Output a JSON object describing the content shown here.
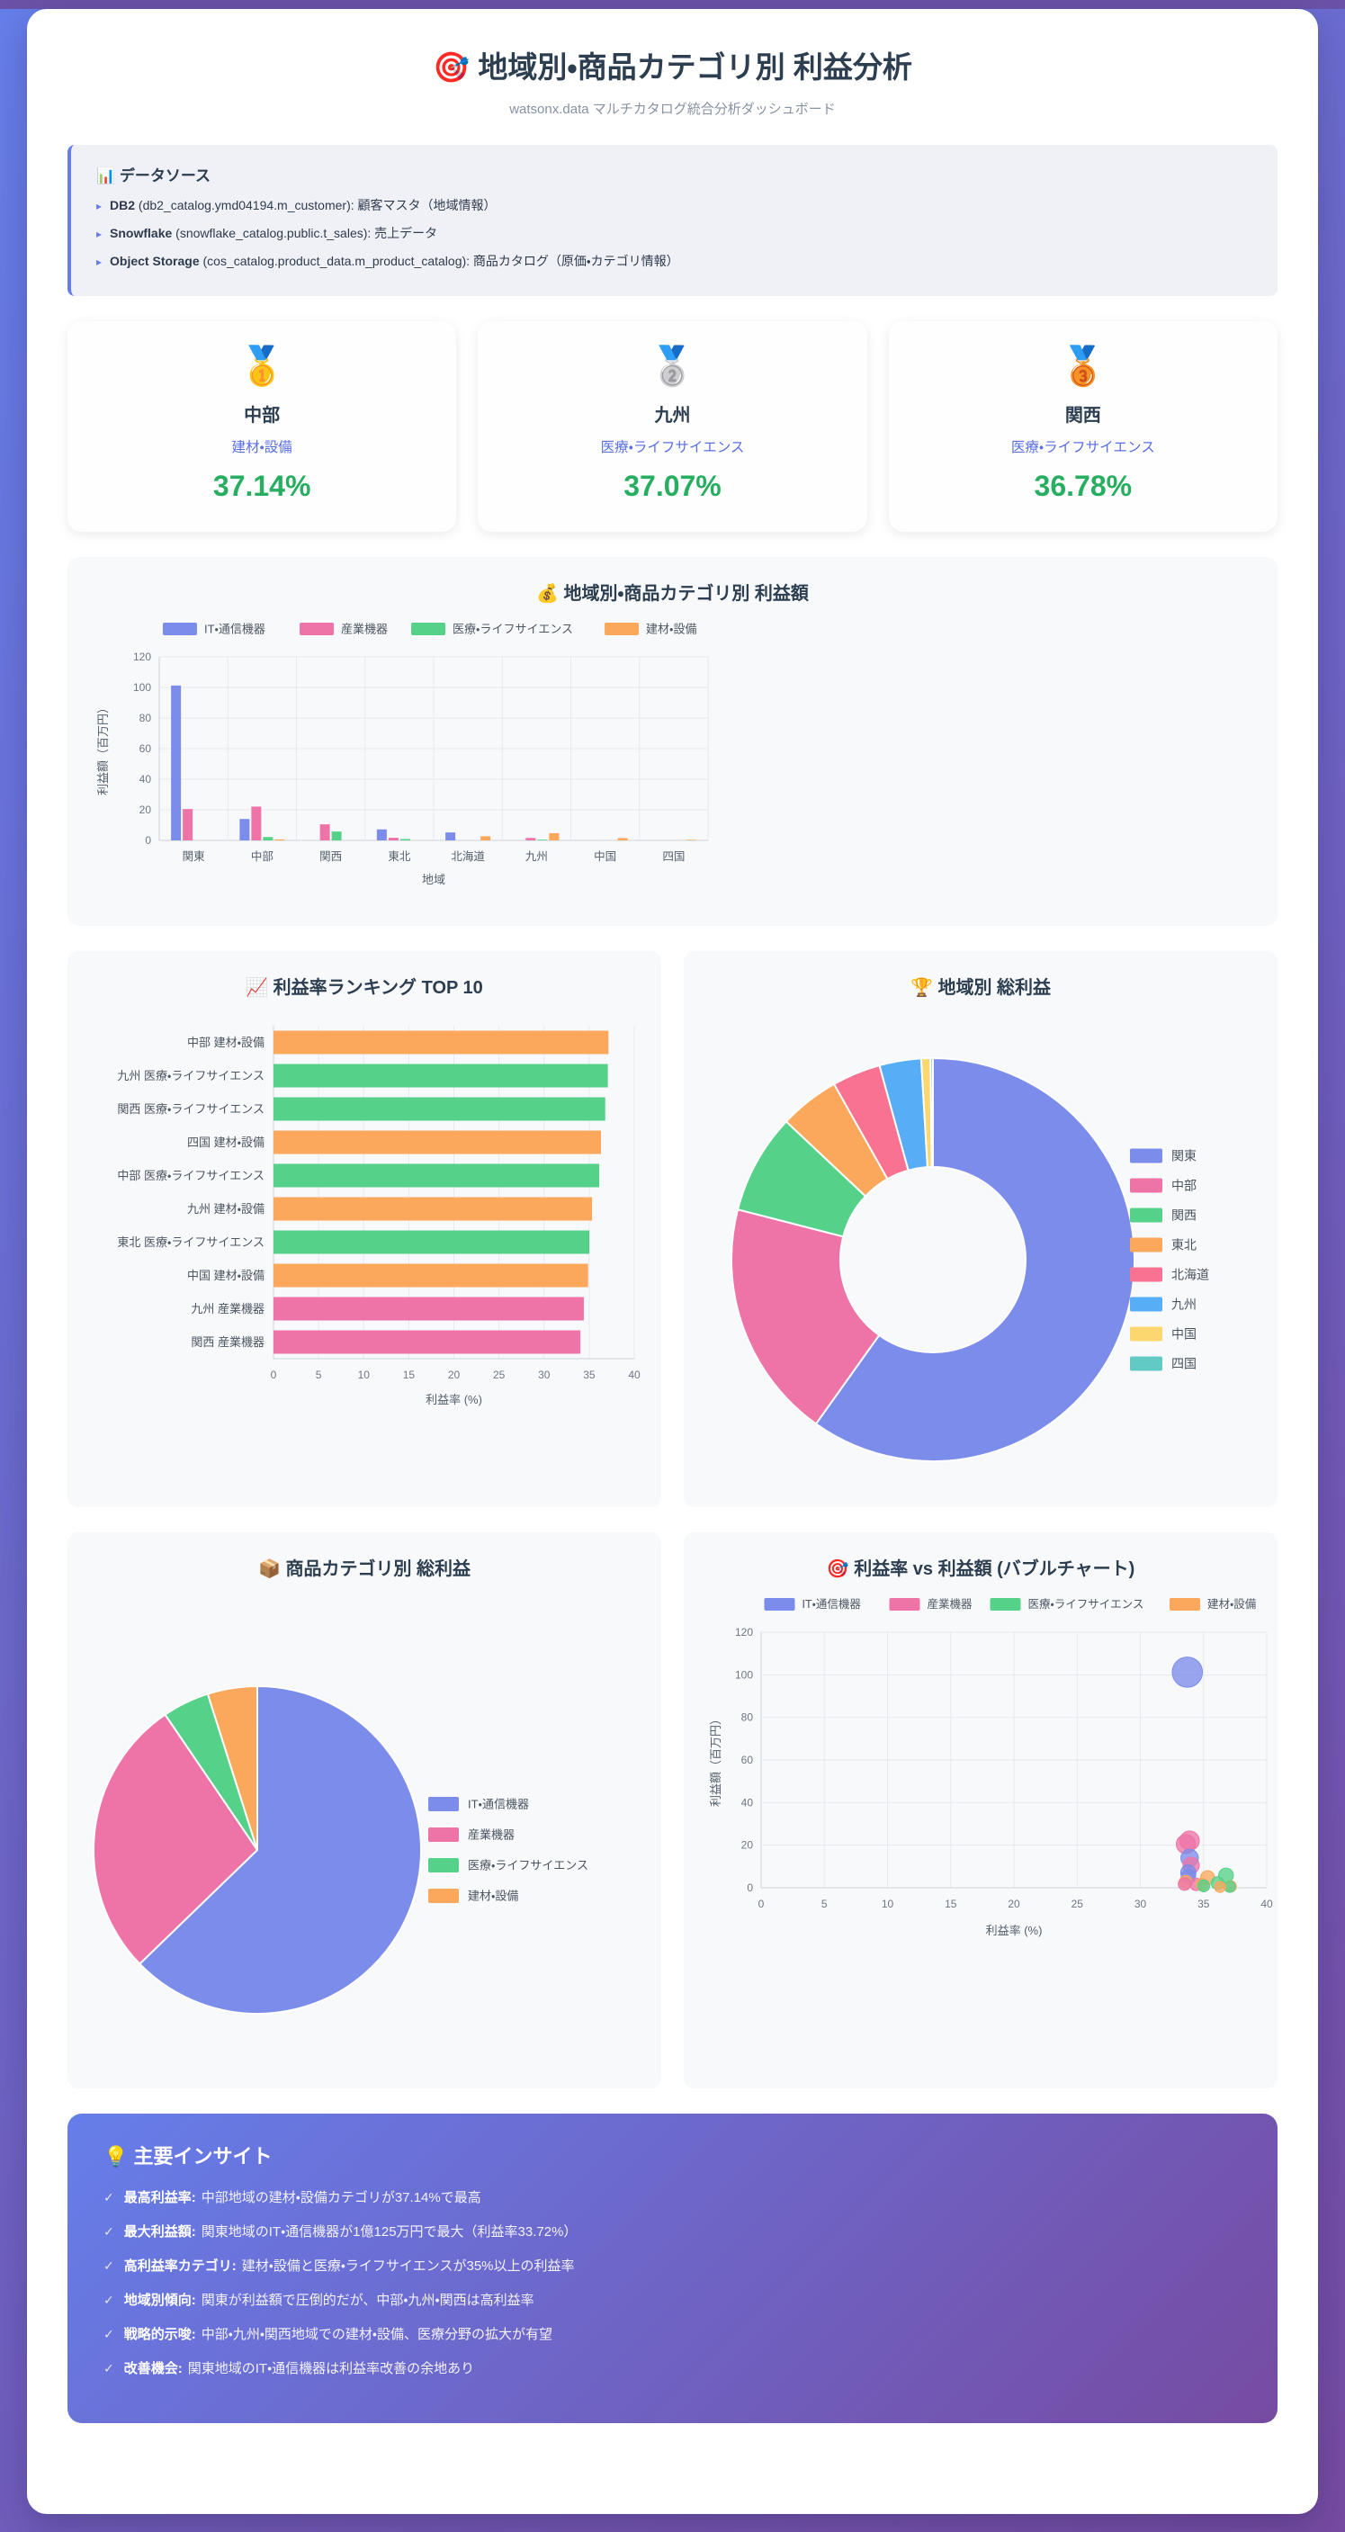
{
  "page": {
    "title": "🎯 地域別・商品カテゴリ別 利益分析",
    "subtitle": "watsonx.data マルチカタログ統合分析ダッシュボード"
  },
  "colors": {
    "accent": "#667eea",
    "gradient_end": "#764ba2",
    "positive_green": "#27ae60",
    "title_dark": "#2c3e50"
  },
  "datasources": {
    "title": "📊 データソース",
    "bullet": "▸",
    "items": [
      {
        "name": "DB2",
        "detail": " (db2_catalog.ymd04194.m_customer): 顧客マスタ（地域情報）"
      },
      {
        "name": "Snowflake",
        "detail": " (snowflake_catalog.public.t_sales): 売上データ"
      },
      {
        "name": "Object Storage",
        "detail": " (cos_catalog.product_data.m_product_catalog): 商品カタログ（原価・カテゴリ情報）"
      }
    ]
  },
  "ranking_cards": [
    {
      "medal": "🥇",
      "region": "中部",
      "category": "建材・設備",
      "rate": "37.14%"
    },
    {
      "medal": "🥈",
      "region": "九州",
      "category": "医療・ライフサイエンス",
      "rate": "37.07%"
    },
    {
      "medal": "🥉",
      "region": "関西",
      "category": "医療・ライフサイエンス",
      "rate": "36.78%"
    }
  ],
  "insights": {
    "title": "💡 主要インサイト",
    "check": "✓",
    "items": [
      {
        "label": "最高利益率:",
        "text": "中部地域の建材・設備カテゴリが37.14%で最高"
      },
      {
        "label": "最大利益額:",
        "text": "関東地域のIT・通信機器が1億125万円で最大（利益率33.72%）"
      },
      {
        "label": "高利益率カテゴリ:",
        "text": "建材・設備と医療・ライフサイエンスが35%以上の利益率"
      },
      {
        "label": "地域別傾向:",
        "text": "関東が利益額で圧倒的だが、中部・九州・関西は高利益率"
      },
      {
        "label": "戦略的示唆:",
        "text": "中部・九州・関西地域での建材・設備、医療分野の拡大が有望"
      },
      {
        "label": "改善機会:",
        "text": "関東地域のIT・通信機器は利益率改善の余地あり"
      }
    ]
  },
  "chart_data": [
    {
      "id": "grouped_bar",
      "type": "bar",
      "title": "💰 地域別・商品カテゴリ別 利益額",
      "categories": [
        "関東",
        "中部",
        "関西",
        "東北",
        "北海道",
        "九州",
        "中国",
        "四国"
      ],
      "series": [
        {
          "name": "IT・通信機器",
          "color": "#7c8ceb",
          "values": [
            101.25,
            14.0,
            0,
            7.2,
            5.2,
            0,
            0,
            0
          ]
        },
        {
          "name": "産業機器",
          "color": "#ee74a8",
          "values": [
            20.5,
            22.1,
            10.5,
            1.7,
            0,
            1.6,
            0,
            0
          ]
        },
        {
          "name": "医療・ライフサイエンス",
          "color": "#55d189",
          "values": [
            0,
            2.2,
            5.8,
            0.9,
            0,
            0.5,
            0,
            0
          ]
        },
        {
          "name": "建材・設備",
          "color": "#fba85c",
          "values": [
            0,
            0.66,
            0,
            0,
            2.7,
            4.7,
            1.5,
            0.4
          ]
        }
      ],
      "xlabel": "地域",
      "ylabel": "利益額（百万円）",
      "ylim": [
        0,
        120
      ],
      "yticks": [
        0,
        20,
        40,
        60,
        80,
        100,
        120
      ],
      "grid": true,
      "legend_position": "top"
    },
    {
      "id": "ranking",
      "type": "bar",
      "orientation": "horizontal",
      "title": "📈 利益率ランキング TOP 10",
      "categories": [
        "中部 建材・設備",
        "九州 医療・ライフサイエンス",
        "関西 医療・ライフサイエンス",
        "四国 建材・設備",
        "中部 医療・ライフサイエンス",
        "九州 建材・設備",
        "東北 医療・ライフサイエンス",
        "中国 建材・設備",
        "九州 産業機器",
        "関西 産業機器"
      ],
      "values": [
        37.14,
        37.07,
        36.78,
        36.31,
        36.12,
        35.32,
        35.02,
        34.88,
        34.41,
        34.02
      ],
      "colors": [
        "#fba85c",
        "#55d189",
        "#55d189",
        "#fba85c",
        "#55d189",
        "#fba85c",
        "#55d189",
        "#fba85c",
        "#ee74a8",
        "#ee74a8"
      ],
      "xlabel": "利益率 (%)",
      "xlim": [
        0,
        40
      ],
      "xticks": [
        0,
        5,
        10,
        15,
        20,
        25,
        30,
        35,
        40
      ],
      "grid": true
    },
    {
      "id": "region_donut",
      "type": "pie",
      "subtype": "donut",
      "title": "🏆 地域別 総利益",
      "labels": [
        "関東",
        "中部",
        "関西",
        "東北",
        "北海道",
        "九州",
        "中国",
        "四国"
      ],
      "values": [
        121.75,
        38.96,
        16.3,
        9.8,
        7.9,
        6.8,
        1.5,
        0.4
      ],
      "colors": [
        "#7c8ceb",
        "#ee74a8",
        "#55d189",
        "#fba85c",
        "#f97292",
        "#57aef6",
        "#fcd66f",
        "#62cac5"
      ],
      "legend_position": "right"
    },
    {
      "id": "category_pie",
      "type": "pie",
      "title": "📦 商品カテゴリ別 総利益",
      "labels": [
        "IT・通信機器",
        "産業機器",
        "医療・ライフサイエンス",
        "建材・設備"
      ],
      "values": [
        127.65,
        56.4,
        9.4,
        9.96
      ],
      "colors": [
        "#7c8ceb",
        "#ee74a8",
        "#55d189",
        "#fba85c"
      ],
      "legend_position": "right"
    },
    {
      "id": "bubble",
      "type": "scatter",
      "subtype": "bubble",
      "title": "🎯 利益率 vs 利益額 (バブルチャート)",
      "xlabel": "利益率 (%)",
      "ylabel": "利益額（百万円）",
      "xlim": [
        0,
        40
      ],
      "ylim": [
        0,
        120
      ],
      "xticks": [
        0,
        5,
        10,
        15,
        20,
        25,
        30,
        35,
        40
      ],
      "yticks": [
        0,
        20,
        40,
        60,
        80,
        100,
        120
      ],
      "grid": true,
      "legend": [
        "IT・通信機器",
        "産業機器",
        "医療・ライフサイエンス",
        "建材・設備"
      ],
      "legend_colors": [
        "#7c8ceb",
        "#ee74a8",
        "#55d189",
        "#fba85c"
      ],
      "points": [
        {
          "series": "IT・通信機器",
          "x": 33.72,
          "y": 101.25
        },
        {
          "series": "IT・通信機器",
          "x": 33.9,
          "y": 14.0
        },
        {
          "series": "IT・通信機器",
          "x": 33.8,
          "y": 7.2
        },
        {
          "series": "IT・通信機器",
          "x": 33.8,
          "y": 5.2
        },
        {
          "series": "産業機器",
          "x": 33.6,
          "y": 20.5
        },
        {
          "series": "産業機器",
          "x": 33.9,
          "y": 22.1
        },
        {
          "series": "産業機器",
          "x": 34.02,
          "y": 10.5
        },
        {
          "series": "産業機器",
          "x": 33.5,
          "y": 1.7
        },
        {
          "series": "産業機器",
          "x": 34.41,
          "y": 1.6
        },
        {
          "series": "医療・ライフサイエンス",
          "x": 36.12,
          "y": 2.2
        },
        {
          "series": "医療・ライフサイエンス",
          "x": 36.78,
          "y": 5.8
        },
        {
          "series": "医療・ライフサイエンス",
          "x": 35.02,
          "y": 0.9
        },
        {
          "series": "医療・ライフサイエンス",
          "x": 37.07,
          "y": 0.5
        },
        {
          "series": "建材・設備",
          "x": 37.14,
          "y": 0.66
        },
        {
          "series": "建材・設備",
          "x": 33.6,
          "y": 2.7
        },
        {
          "series": "建材・設備",
          "x": 35.32,
          "y": 4.7
        },
        {
          "series": "建材・設備",
          "x": 34.88,
          "y": 1.5
        },
        {
          "series": "建材・設備",
          "x": 36.31,
          "y": 0.4
        }
      ]
    }
  ]
}
